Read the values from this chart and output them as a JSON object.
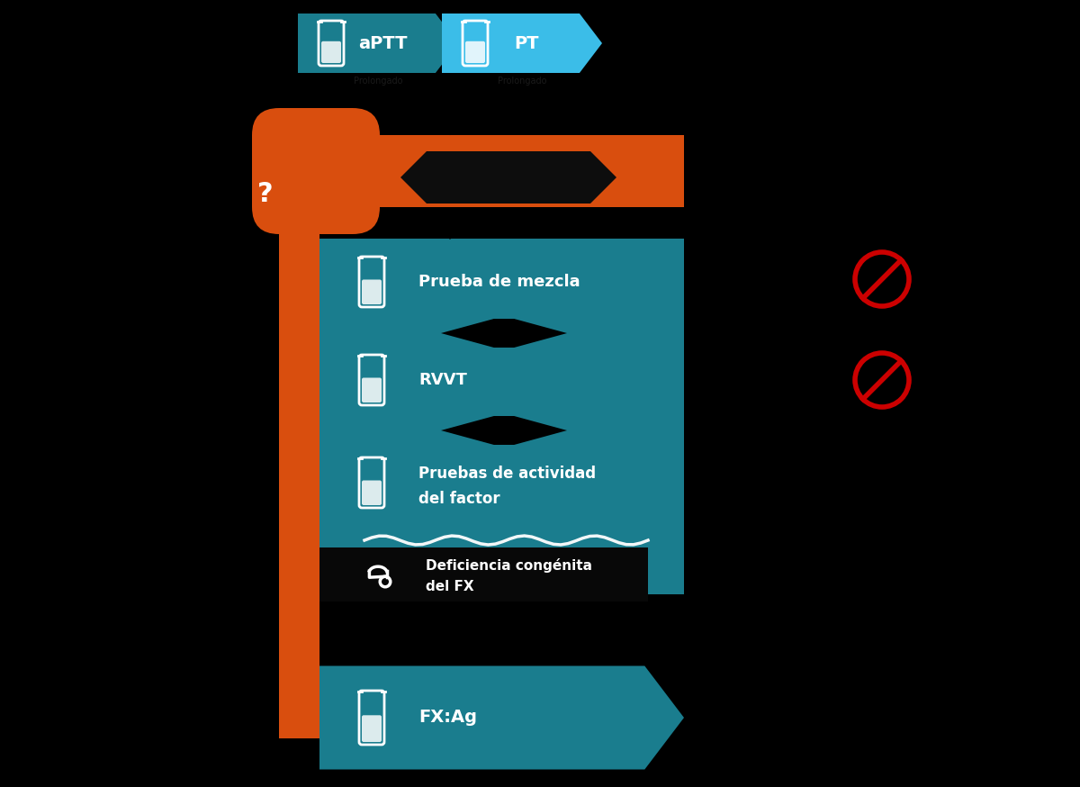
{
  "bg_color": "#000000",
  "teal": "#1a7d8e",
  "light_blue": "#3bbde8",
  "orange": "#d94e0e",
  "white": "#ffffff",
  "black": "#000000",
  "red_no": "#cc0000",
  "aptt_label": "aPTT",
  "pt_label": "PT",
  "question_mark": "?",
  "box1_text": "Prueba de mezcla",
  "box2_text": "RVVT",
  "box3_line1": "Pruebas de actividad",
  "box3_line2": "del factor",
  "box4_line1": "Deficiencia congénita",
  "box4_line2": "del FX",
  "box5_text": "FX:Ag",
  "figw": 12.0,
  "figh": 8.74
}
